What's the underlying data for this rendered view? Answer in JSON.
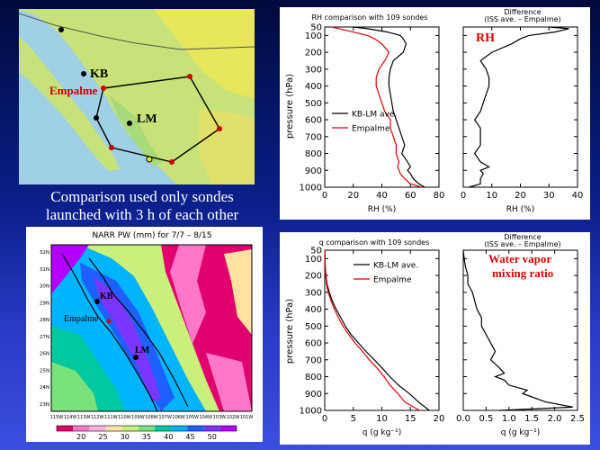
{
  "caption": {
    "line1": "Comparison used only sondes",
    "line2": "launched with 3 h of each other"
  },
  "map1": {
    "labels": {
      "kb": "KB",
      "empalme": "Empalme",
      "lm": "LM"
    }
  },
  "map2": {
    "title": "NARR PW (mm) for 7/7 – 8/15",
    "labels": {
      "kb": "KB",
      "empalme": "Empalme",
      "lm": "LM"
    },
    "lat_ticks": [
      "32N",
      "31N",
      "30N",
      "29N",
      "28N",
      "27N",
      "26N",
      "25N",
      "24N",
      "23N"
    ],
    "lon_ticks": [
      "115W",
      "114W",
      "113W",
      "112W",
      "111W",
      "110W",
      "109W",
      "108W",
      "107W",
      "106W",
      "105W",
      "104W",
      "103W",
      "102W",
      "101W"
    ],
    "colorbar": {
      "ticks": [
        "20",
        "25",
        "30",
        "35",
        "40",
        "45",
        "50"
      ],
      "colors": [
        "#e0006e",
        "#ff77c8",
        "#ffb0e0",
        "#ffe2a0",
        "#c8f07a",
        "#7ae27a",
        "#00c8a0",
        "#00b4ff",
        "#1e60ff",
        "#7a36ff",
        "#b400ff"
      ]
    }
  },
  "chart_data": [
    {
      "type": "line",
      "title": "RH comparison with 109 sondes",
      "xlabel": "RH  (%)",
      "ylabel": "pressure (hPa)",
      "xlim": [
        0,
        80
      ],
      "ylim": [
        1000,
        50
      ],
      "xticks": [
        "0",
        "20",
        "40",
        "60",
        "80"
      ],
      "yticks": [
        "50",
        "100",
        "200",
        "300",
        "400",
        "500",
        "600",
        "700",
        "800",
        "900",
        "1000"
      ],
      "y": [
        1000,
        980,
        950,
        920,
        900,
        880,
        850,
        800,
        750,
        700,
        650,
        600,
        550,
        500,
        450,
        400,
        350,
        300,
        250,
        200,
        150,
        120,
        100,
        80,
        60,
        50
      ],
      "series": [
        {
          "name": "KB-LM ave.",
          "color": "#000000",
          "values": [
            70,
            66,
            62,
            60,
            58,
            60,
            58,
            54,
            56,
            54,
            52,
            50,
            48,
            47,
            46,
            45,
            45,
            46,
            48,
            55,
            57,
            55,
            53,
            44,
            30,
            20
          ]
        },
        {
          "name": "Empalme",
          "color": "#e00000",
          "values": [
            68,
            60,
            56,
            53,
            52,
            51,
            52,
            50,
            50,
            48,
            46,
            46,
            42,
            40,
            38,
            36,
            36,
            38,
            42,
            45,
            40,
            35,
            30,
            20,
            10,
            5
          ]
        }
      ]
    },
    {
      "type": "line",
      "title": "Difference",
      "subtitle": "(ISS ave. – Empalme)",
      "annotation": "RH",
      "xlabel": "RH  (%)",
      "xlim": [
        0,
        40
      ],
      "ylim": [
        1000,
        50
      ],
      "xticks": [
        "0",
        "10",
        "20",
        "30",
        "40"
      ],
      "yticks": [
        "50",
        "100",
        "200",
        "300",
        "400",
        "500",
        "600",
        "700",
        "800",
        "900",
        "1000"
      ],
      "y": [
        1000,
        980,
        950,
        920,
        900,
        880,
        850,
        800,
        750,
        700,
        650,
        600,
        550,
        500,
        450,
        400,
        350,
        300,
        250,
        200,
        150,
        120,
        100,
        80,
        60,
        50
      ],
      "series": [
        {
          "name": "",
          "color": "#000000",
          "values": [
            2,
            6,
            6,
            7,
            6,
            9,
            6,
            4,
            6,
            6,
            6,
            4,
            6,
            7,
            8,
            9,
            9,
            8,
            6,
            10,
            17,
            20,
            23,
            32,
            37,
            30
          ]
        }
      ]
    },
    {
      "type": "line",
      "title": "q comparison with 109 sondes",
      "xlabel": "q  (g kg⁻¹)",
      "ylabel": "pressure (hPa)",
      "xlim": [
        0,
        20
      ],
      "ylim": [
        1000,
        50
      ],
      "xticks": [
        "0",
        "5",
        "10",
        "15",
        "20"
      ],
      "yticks": [
        "50",
        "100",
        "200",
        "300",
        "400",
        "500",
        "600",
        "700",
        "800",
        "900",
        "1000"
      ],
      "y": [
        1000,
        950,
        900,
        850,
        800,
        750,
        700,
        650,
        600,
        550,
        500,
        450,
        400,
        350,
        300,
        250,
        200,
        150,
        100,
        50
      ],
      "series": [
        {
          "name": "KB-LM ave.",
          "color": "#000000",
          "values": [
            18.3,
            16.4,
            14.8,
            12.9,
            11.4,
            10.1,
            8.7,
            7.2,
            5.9,
            4.6,
            3.6,
            2.8,
            2.0,
            1.3,
            0.8,
            0.4,
            0.2,
            0.1,
            0.05,
            0.02
          ]
        },
        {
          "name": "Empalme",
          "color": "#e00000",
          "values": [
            16.6,
            14.0,
            12.8,
            11.4,
            10.4,
            9.2,
            7.8,
            6.6,
            5.3,
            4.2,
            3.2,
            2.4,
            1.7,
            1.1,
            0.6,
            0.3,
            0.15,
            0.08,
            0.04,
            0.02
          ]
        }
      ]
    },
    {
      "type": "line",
      "title": "Difference",
      "subtitle": "(ISS ave. – Empalme)",
      "annotation": "Water vapor mixing ratio",
      "annotation_lines": [
        "Water vapor",
        "mixing ratio"
      ],
      "xlabel": "q  (g kg⁻¹)",
      "xlim": [
        0,
        2.5
      ],
      "ylim": [
        1000,
        50
      ],
      "xticks": [
        "0.0",
        "0.5",
        "1.0",
        "1.5",
        "2.0",
        "2.5"
      ],
      "yticks": [
        "50",
        "100",
        "200",
        "300",
        "400",
        "500",
        "600",
        "700",
        "800",
        "900",
        "1000"
      ],
      "y": [
        1000,
        980,
        950,
        920,
        900,
        880,
        850,
        820,
        800,
        780,
        750,
        700,
        650,
        600,
        550,
        500,
        450,
        400,
        350,
        300,
        250,
        200,
        150,
        100,
        50
      ],
      "series": [
        {
          "name": "",
          "color": "#000000",
          "values": [
            0.8,
            2.4,
            1.8,
            1.5,
            1.3,
            1.4,
            1.0,
            0.9,
            0.7,
            0.9,
            0.8,
            0.6,
            0.7,
            0.6,
            0.5,
            0.4,
            0.4,
            0.3,
            0.25,
            0.2,
            0.1,
            0.1,
            0.05,
            0.02,
            0.0
          ]
        }
      ]
    }
  ]
}
